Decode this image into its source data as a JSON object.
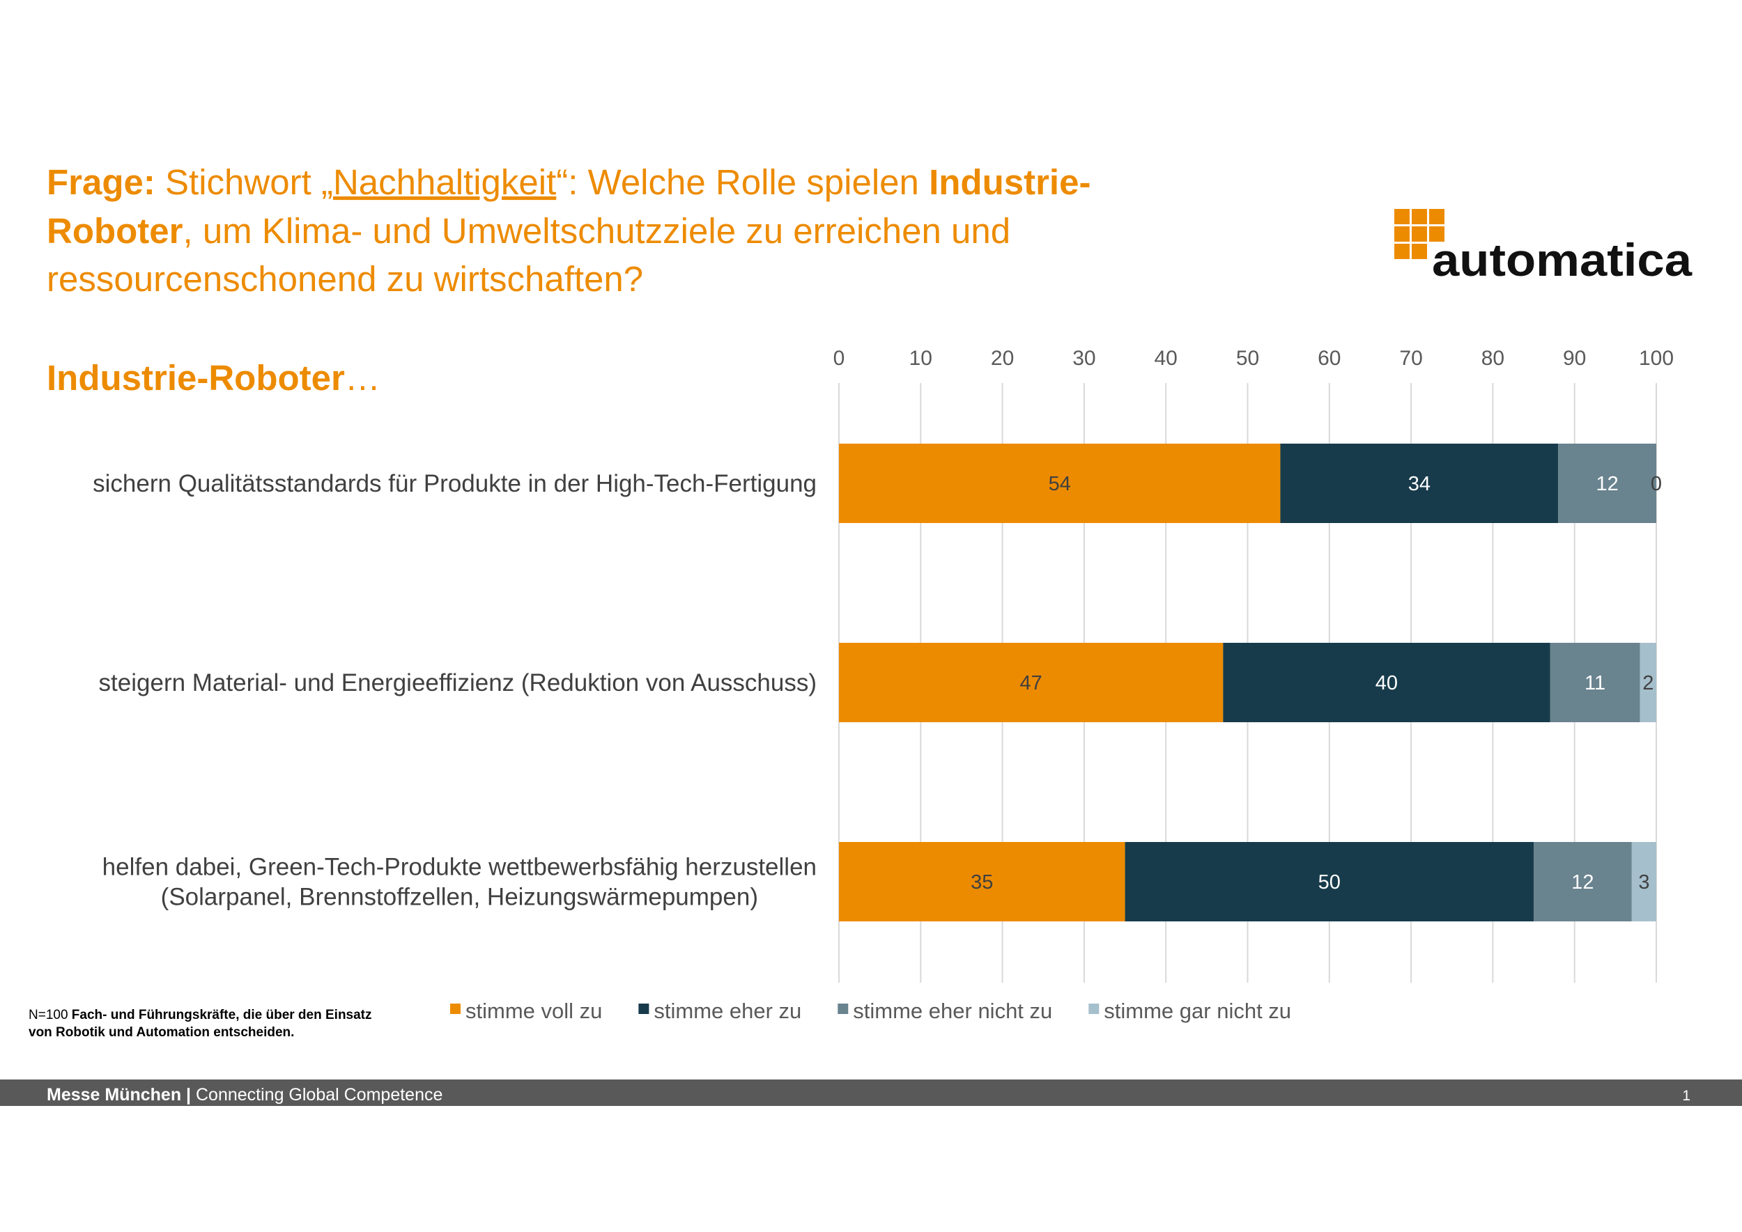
{
  "header": {
    "question_lines": [
      [
        "Frage:",
        " Stichwort „",
        "Nachhaltigkeit",
        "“: Welche Rolle spielen ",
        "Industrie-"
      ],
      [
        "Roboter",
        ", um Klima- und Umweltschutzziele zu erreichen und"
      ],
      [
        "ressourcenschonend zu wirtschaften?"
      ]
    ],
    "subject": "Industrie-Roboter",
    "subject_suffix": "…"
  },
  "logo": "automatica",
  "chart_data": {
    "type": "stacked-bar-horizontal",
    "categories": [
      [
        "sichern Qualitätsstandards für Produkte in der High-Tech-Fertigung"
      ],
      [
        "steigern Material- und Energieeffizienz (Reduktion von Ausschuss)"
      ],
      [
        "helfen dabei, Green-Tech-Produkte wettbewerbsfähig herzustellen",
        "(Solarpanel, Brennstoffzellen, Heizungswärmepumpen)"
      ]
    ],
    "series": [
      {
        "name": "stimme voll zu",
        "color": "#ED8B00",
        "label_color": "#404040",
        "values": [
          54,
          47,
          35
        ]
      },
      {
        "name": "stimme eher zu",
        "color": "#173B4B",
        "label_color": "#ffffff",
        "values": [
          34,
          40,
          50
        ]
      },
      {
        "name": "stimme eher nicht zu",
        "color": "#69838F",
        "label_color": "#ffffff",
        "values": [
          12,
          11,
          12
        ]
      },
      {
        "name": "stimme gar nicht zu",
        "color": "#A6BFCC",
        "label_color": "#404040",
        "values": [
          0,
          2,
          3
        ]
      }
    ],
    "xlim": [
      0,
      100
    ],
    "xticks": [
      0,
      10,
      20,
      30,
      40,
      50,
      60,
      70,
      80,
      90,
      100
    ],
    "grid": true
  },
  "note": {
    "lines": [
      [
        "N=100 ",
        "Fach- und Führungskräfte, die über den Einsatz"
      ],
      [
        "von Robotik und Automation entscheiden."
      ]
    ]
  },
  "footer": {
    "organizer": "Messe München",
    "separator": " | ",
    "slogan": "Connecting Global Competence",
    "page": "1"
  }
}
